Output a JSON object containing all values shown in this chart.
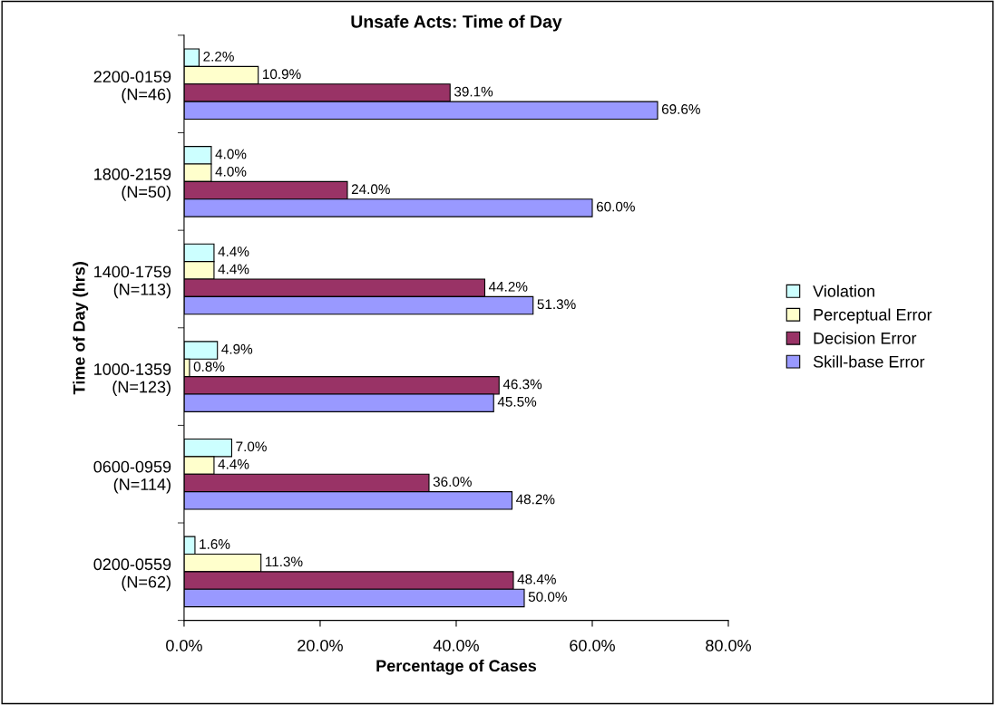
{
  "chart_data": {
    "type": "bar",
    "orientation": "horizontal",
    "title": "Unsafe Acts: Time of Day",
    "xlabel": "Percentage of Cases",
    "ylabel": "Time of Day (hrs)",
    "categories": [
      "2200-0159\n(N=46)",
      "1800-2159\n(N=50)",
      "1400-1759\n(N=113)",
      "1000-1359\n(N=123)",
      "0600-0959\n(N=114)",
      "0200-0559\n(N=62)"
    ],
    "series": [
      {
        "name": "Violation",
        "color": "#ccffff",
        "values": [
          2.2,
          4.0,
          4.4,
          4.9,
          7.0,
          1.6
        ],
        "value_labels": [
          "2.2%",
          "4.0%",
          "4.4%",
          "4.9%",
          "7.0%",
          "1.6%"
        ]
      },
      {
        "name": "Perceptual Error",
        "color": "#ffffcc",
        "values": [
          10.9,
          4.0,
          4.4,
          0.8,
          4.4,
          11.3
        ],
        "value_labels": [
          "10.9%",
          "4.0%",
          "4.4%",
          "0.8%",
          "4.4%",
          "11.3%"
        ]
      },
      {
        "name": "Decision Error",
        "color": "#993366",
        "values": [
          39.1,
          24.0,
          44.2,
          46.3,
          36.0,
          48.4
        ],
        "value_labels": [
          "39.1%",
          "24.0%",
          "44.2%",
          "46.3%",
          "36.0%",
          "48.4%"
        ]
      },
      {
        "name": "Skill-base Error",
        "color": "#9999ff",
        "values": [
          69.6,
          60.0,
          51.3,
          45.5,
          48.2,
          50.0
        ],
        "value_labels": [
          "69.6%",
          "60.0%",
          "51.3%",
          "45.5%",
          "48.2%",
          "50.0%"
        ]
      }
    ],
    "xlim": [
      0,
      80
    ],
    "xticks": [
      {
        "value": 0,
        "label": "0.0%"
      },
      {
        "value": 20,
        "label": "20.0%"
      },
      {
        "value": 40,
        "label": "40.0%"
      },
      {
        "value": 60,
        "label": "60.0%"
      },
      {
        "value": 80,
        "label": "80.0%"
      }
    ],
    "grid": false,
    "legend": "right"
  }
}
